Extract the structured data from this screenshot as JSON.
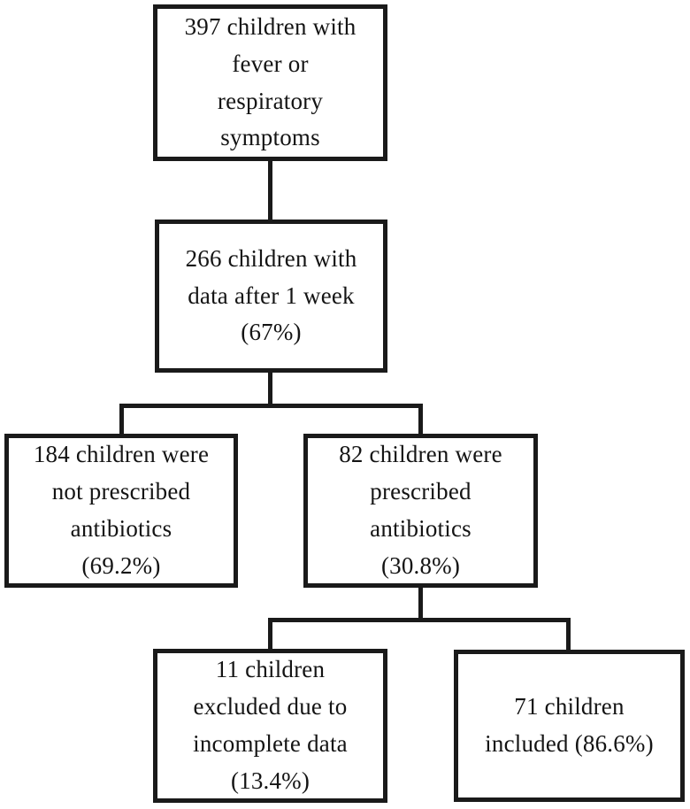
{
  "diagram": {
    "type": "flowchart",
    "background_color": "#ffffff",
    "line_color": "#1a1a1a",
    "nodes": {
      "total": {
        "text": "397 children with\nfever or\nrespiratory\nsymptoms",
        "count": 397
      },
      "followup": {
        "text": "266 children with\ndata after 1 week\n(67%)",
        "count": 266,
        "percent": "67%"
      },
      "no_antibiotics": {
        "text": "184 children were\nnot prescribed\nantibiotics\n(69.2%)",
        "count": 184,
        "percent": "69.2%"
      },
      "antibiotics": {
        "text": "82 children were\nprescribed\nantibiotics\n(30.8%)",
        "count": 82,
        "percent": "30.8%"
      },
      "excluded": {
        "text": "11 children\nexcluded due to\nincomplete data\n(13.4%)",
        "count": 11,
        "percent": "13.4%"
      },
      "included": {
        "text": "71 children\nincluded (86.6%)",
        "count": 71,
        "percent": "86.6%"
      }
    },
    "edges": [
      {
        "from": "total",
        "to": "followup"
      },
      {
        "from": "followup",
        "to": "no_antibiotics"
      },
      {
        "from": "followup",
        "to": "antibiotics"
      },
      {
        "from": "antibiotics",
        "to": "excluded"
      },
      {
        "from": "antibiotics",
        "to": "included"
      }
    ]
  }
}
